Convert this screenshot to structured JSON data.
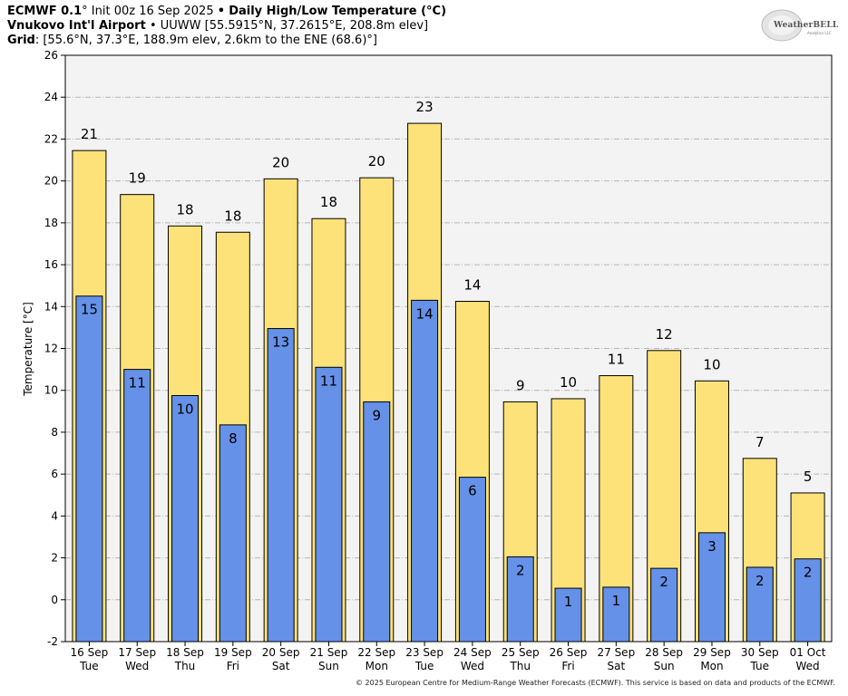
{
  "header": {
    "model": "ECMWF 0.1",
    "model_deg": "°",
    "init": "Init 00z 16 Sep 2025",
    "bullet": "•",
    "product": "Daily High/Low Temperature (°C)",
    "station": "Vnukovo Int'l Airport",
    "station_code": "UUWW",
    "station_coords": "[55.5915°N, 37.2615°E, 208.8m elev]",
    "grid_label": "Grid",
    "grid_info": ": [55.6°N, 37.3°E, 188.9m elev, 2.6km to the ENE (68.6)°]"
  },
  "logo": {
    "text": "WeatherBELL",
    "sub": "Analytics LLC"
  },
  "footer": "© 2025 European Centre for Medium-Range Weather Forecasts (ECMWF). This service is based on data and products of the ECMWF.",
  "chart_data": {
    "type": "bar",
    "ylabel": "Temperature [°C]",
    "ylim": [
      -2,
      26
    ],
    "yticks": [
      -2,
      0,
      2,
      4,
      6,
      8,
      10,
      12,
      14,
      16,
      18,
      20,
      22,
      24,
      26
    ],
    "grid": true,
    "categories": [
      {
        "date": "16 Sep",
        "day": "Tue"
      },
      {
        "date": "17 Sep",
        "day": "Wed"
      },
      {
        "date": "18 Sep",
        "day": "Thu"
      },
      {
        "date": "19 Sep",
        "day": "Fri"
      },
      {
        "date": "20 Sep",
        "day": "Sat"
      },
      {
        "date": "21 Sep",
        "day": "Sun"
      },
      {
        "date": "22 Sep",
        "day": "Mon"
      },
      {
        "date": "23 Sep",
        "day": "Tue"
      },
      {
        "date": "24 Sep",
        "day": "Wed"
      },
      {
        "date": "25 Sep",
        "day": "Thu"
      },
      {
        "date": "26 Sep",
        "day": "Fri"
      },
      {
        "date": "27 Sep",
        "day": "Sat"
      },
      {
        "date": "28 Sep",
        "day": "Sun"
      },
      {
        "date": "29 Sep",
        "day": "Mon"
      },
      {
        "date": "30 Sep",
        "day": "Tue"
      },
      {
        "date": "01 Oct",
        "day": "Wed"
      }
    ],
    "series": [
      {
        "color": "#fde27a",
        "values": [
          21.45,
          19.35,
          17.85,
          17.55,
          20.1,
          18.2,
          20.15,
          22.75,
          14.25,
          9.45,
          9.6,
          10.7,
          11.9,
          10.45,
          6.75,
          5.1
        ],
        "labels": [
          "21",
          "19",
          "18",
          "18",
          "20",
          "18",
          "20",
          "23",
          "14",
          "9",
          "10",
          "11",
          "12",
          "10",
          "7",
          "5"
        ]
      },
      {
        "color": "#6691e8",
        "values": [
          14.5,
          11.0,
          9.75,
          8.35,
          12.95,
          11.1,
          9.45,
          14.3,
          5.85,
          2.05,
          0.55,
          0.6,
          1.5,
          3.2,
          1.55,
          1.95
        ],
        "labels": [
          "15",
          "11",
          "10",
          "8",
          "13",
          "11",
          "9",
          "14",
          "6",
          "2",
          "1",
          "1",
          "2",
          "3",
          "2",
          "2"
        ]
      }
    ]
  }
}
